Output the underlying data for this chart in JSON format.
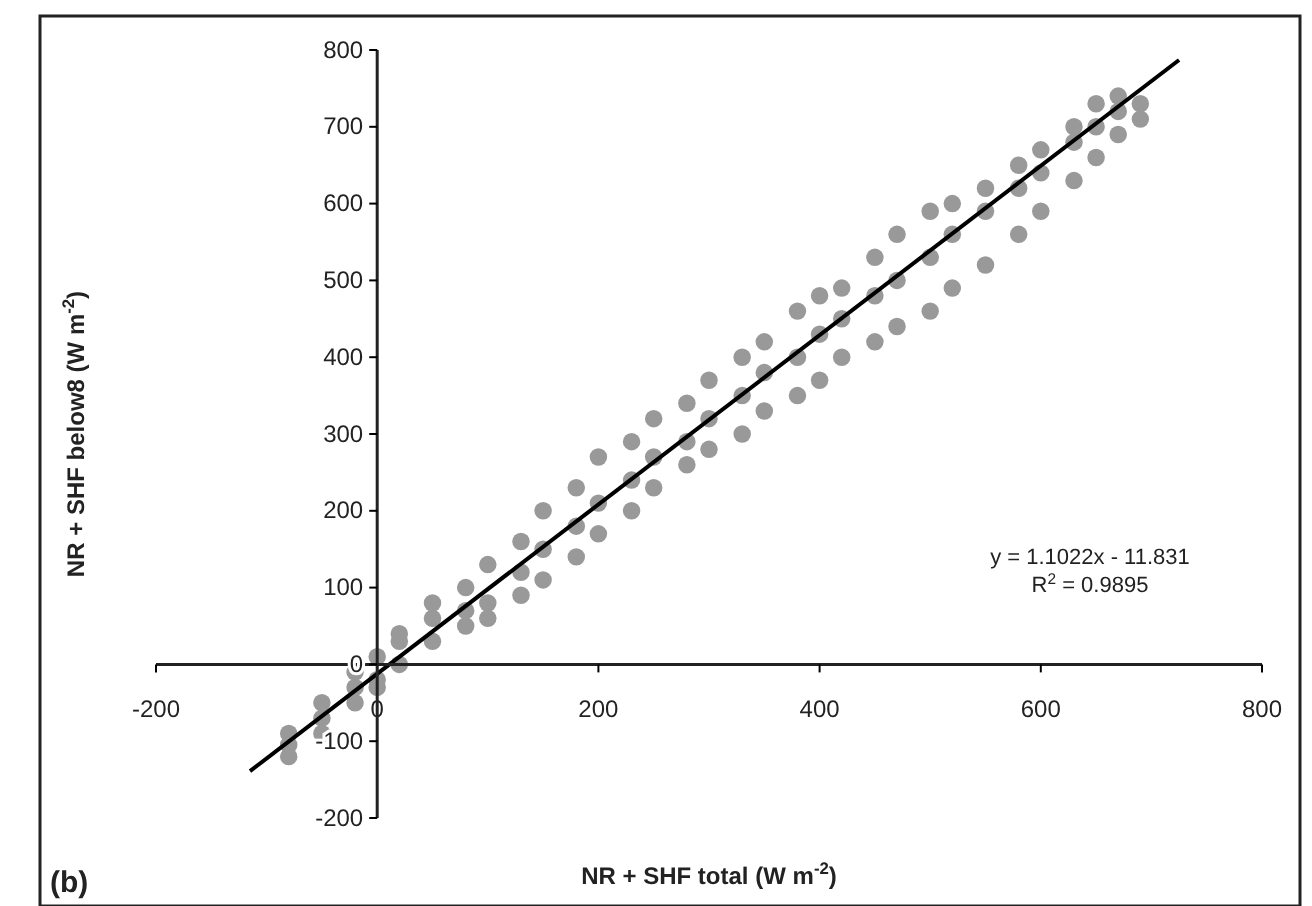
{
  "chart_data": {
    "type": "scatter",
    "xlabel": "NR + SHF total (W m$^{-2}$)",
    "ylabel": "NR + SHF below8 (W m$^{-2}$)",
    "xlim": [
      -200,
      800
    ],
    "ylim": [
      -200,
      800
    ],
    "xticks": [
      -200,
      0,
      200,
      400,
      600,
      800
    ],
    "yticks": [
      -200,
      -100,
      0,
      100,
      200,
      300,
      400,
      500,
      600,
      700,
      800
    ],
    "grid": false,
    "annotations": [
      "y = 1.1022x - 11.831",
      "R$^{2}$ = 0.9895",
      "(b)"
    ],
    "series": [
      {
        "color": "#999999",
        "marker": "circle",
        "x": [
          -80,
          -80,
          -80,
          -50,
          -50,
          -50,
          -20,
          -20,
          -20,
          0,
          0,
          0,
          20,
          20,
          20,
          50,
          50,
          50,
          80,
          80,
          80,
          100,
          100,
          100,
          130,
          130,
          130,
          150,
          150,
          150,
          180,
          180,
          180,
          200,
          200,
          200,
          230,
          230,
          230,
          250,
          250,
          250,
          280,
          280,
          280,
          300,
          300,
          300,
          330,
          330,
          330,
          350,
          350,
          350,
          380,
          380,
          380,
          400,
          400,
          400,
          420,
          420,
          420,
          450,
          450,
          450,
          470,
          470,
          470,
          500,
          500,
          500,
          520,
          520,
          520,
          550,
          550,
          550,
          580,
          580,
          580,
          600,
          600,
          600,
          630,
          630,
          630,
          650,
          650,
          650,
          670,
          670,
          670,
          690,
          690
        ],
        "values": [
          -105,
          -120,
          -90,
          -70,
          -90,
          -50,
          -30,
          -50,
          -10,
          10,
          -20,
          -30,
          30,
          0,
          40,
          60,
          30,
          80,
          100,
          50,
          70,
          130,
          80,
          60,
          160,
          120,
          90,
          200,
          150,
          110,
          230,
          180,
          140,
          270,
          210,
          170,
          290,
          240,
          200,
          320,
          270,
          230,
          340,
          290,
          260,
          370,
          320,
          280,
          400,
          350,
          300,
          420,
          380,
          330,
          460,
          400,
          350,
          480,
          430,
          370,
          490,
          450,
          400,
          530,
          480,
          420,
          560,
          500,
          440,
          590,
          530,
          460,
          600,
          560,
          490,
          620,
          590,
          520,
          650,
          620,
          560,
          670,
          640,
          590,
          700,
          680,
          630,
          730,
          700,
          660,
          740,
          720,
          690,
          730,
          710
        ]
      },
      {
        "type": "line",
        "color": "#000000",
        "marker": "none",
        "line_style": "solid",
        "x": [
          -115,
          725
        ],
        "values": [
          -139,
          787
        ]
      }
    ]
  }
}
